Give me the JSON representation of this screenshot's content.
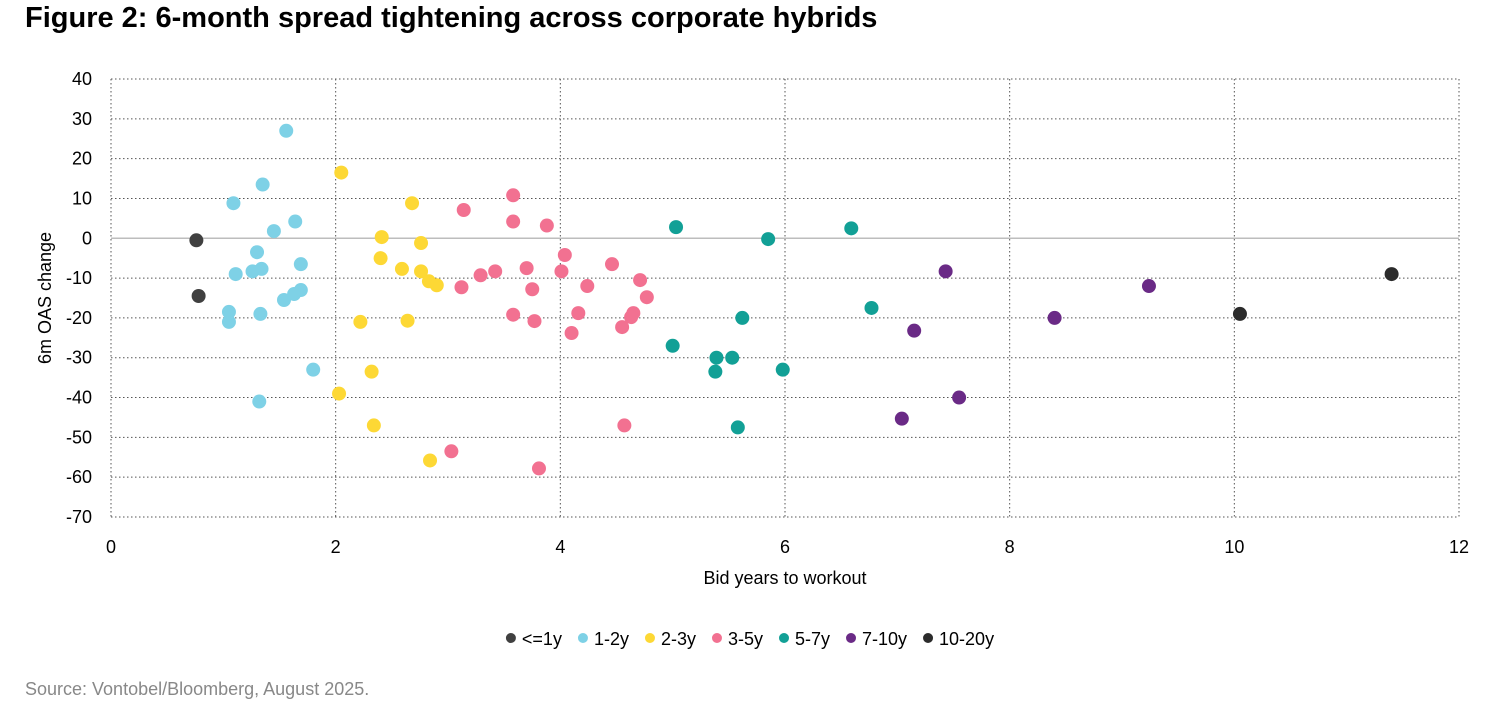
{
  "title": "Figure 2: 6-month spread tightening across corporate hybrids",
  "source": "Source: Vontobel/Bloomberg, August 2025.",
  "chart_data": {
    "type": "scatter",
    "xlabel": "Bid years to workout",
    "ylabel": "6m OAS change",
    "xlim": [
      0,
      12
    ],
    "ylim": [
      -70,
      40
    ],
    "xticks": [
      "0",
      "2",
      "4",
      "6",
      "8",
      "10",
      "12"
    ],
    "yticks": [
      "40",
      "30",
      "20",
      "10",
      "0",
      "-10",
      "-20",
      "-30",
      "-40",
      "-50",
      "-60",
      "-70"
    ],
    "grid": "dotted",
    "legend_position": "bottom",
    "series": [
      {
        "name": "<=1y",
        "color": "#404040",
        "points": [
          [
            0.76,
            -0.5
          ],
          [
            0.78,
            -14.5
          ]
        ]
      },
      {
        "name": "1-2y",
        "color": "#7ed1e6",
        "points": [
          [
            1.56,
            27
          ],
          [
            1.35,
            13.5
          ],
          [
            1.09,
            8.8
          ],
          [
            1.64,
            4.2
          ],
          [
            1.45,
            1.8
          ],
          [
            1.3,
            -3.5
          ],
          [
            1.69,
            -6.5
          ],
          [
            1.34,
            -7.7
          ],
          [
            1.26,
            -8.3
          ],
          [
            1.11,
            -9.0
          ],
          [
            1.69,
            -13
          ],
          [
            1.63,
            -14
          ],
          [
            1.54,
            -15.5
          ],
          [
            1.05,
            -18.5
          ],
          [
            1.33,
            -19
          ],
          [
            1.05,
            -21
          ],
          [
            1.8,
            -33
          ],
          [
            1.32,
            -41
          ]
        ]
      },
      {
        "name": "2-3y",
        "color": "#fdd835",
        "points": [
          [
            2.05,
            16.5
          ],
          [
            2.68,
            8.8
          ],
          [
            2.41,
            0.3
          ],
          [
            2.76,
            -1.2
          ],
          [
            2.4,
            -5
          ],
          [
            2.59,
            -7.7
          ],
          [
            2.76,
            -8.3
          ],
          [
            2.83,
            -10.8
          ],
          [
            2.9,
            -11.8
          ],
          [
            2.22,
            -21
          ],
          [
            2.64,
            -20.7
          ],
          [
            2.32,
            -33.5
          ],
          [
            2.03,
            -39
          ],
          [
            2.34,
            -47
          ],
          [
            2.84,
            -55.8
          ]
        ]
      },
      {
        "name": "3-5y",
        "color": "#f27191",
        "points": [
          [
            3.58,
            10.8
          ],
          [
            3.14,
            7.1
          ],
          [
            3.58,
            4.2
          ],
          [
            3.88,
            3.2
          ],
          [
            4.04,
            -4.2
          ],
          [
            4.46,
            -6.5
          ],
          [
            3.7,
            -7.5
          ],
          [
            3.42,
            -8.3
          ],
          [
            4.01,
            -8.3
          ],
          [
            3.29,
            -9.3
          ],
          [
            4.71,
            -10.5
          ],
          [
            3.75,
            -12.8
          ],
          [
            3.12,
            -12.3
          ],
          [
            4.24,
            -12
          ],
          [
            4.77,
            -14.8
          ],
          [
            3.58,
            -19.2
          ],
          [
            4.16,
            -18.8
          ],
          [
            4.65,
            -18.8
          ],
          [
            4.63,
            -19.8
          ],
          [
            3.77,
            -20.8
          ],
          [
            4.55,
            -22.3
          ],
          [
            4.1,
            -23.8
          ],
          [
            3.03,
            -53.5
          ],
          [
            4.57,
            -47
          ],
          [
            3.81,
            -57.8
          ]
        ]
      },
      {
        "name": "5-7y",
        "color": "#12a096",
        "points": [
          [
            5.03,
            2.8
          ],
          [
            5.85,
            -0.2
          ],
          [
            6.59,
            2.5
          ],
          [
            6.77,
            -17.5
          ],
          [
            5.62,
            -20
          ],
          [
            5.0,
            -27
          ],
          [
            5.39,
            -30
          ],
          [
            5.53,
            -30
          ],
          [
            5.38,
            -33.5
          ],
          [
            5.98,
            -33
          ],
          [
            5.58,
            -47.5
          ]
        ]
      },
      {
        "name": "7-10y",
        "color": "#6a2a86",
        "points": [
          [
            7.43,
            -8.3
          ],
          [
            9.24,
            -12
          ],
          [
            8.4,
            -20
          ],
          [
            7.15,
            -23.2
          ],
          [
            7.55,
            -40
          ],
          [
            7.04,
            -45.3
          ]
        ]
      },
      {
        "name": "10-20y",
        "color": "#2b2b2b",
        "points": [
          [
            11.4,
            -9
          ],
          [
            10.05,
            -19
          ]
        ]
      }
    ]
  }
}
